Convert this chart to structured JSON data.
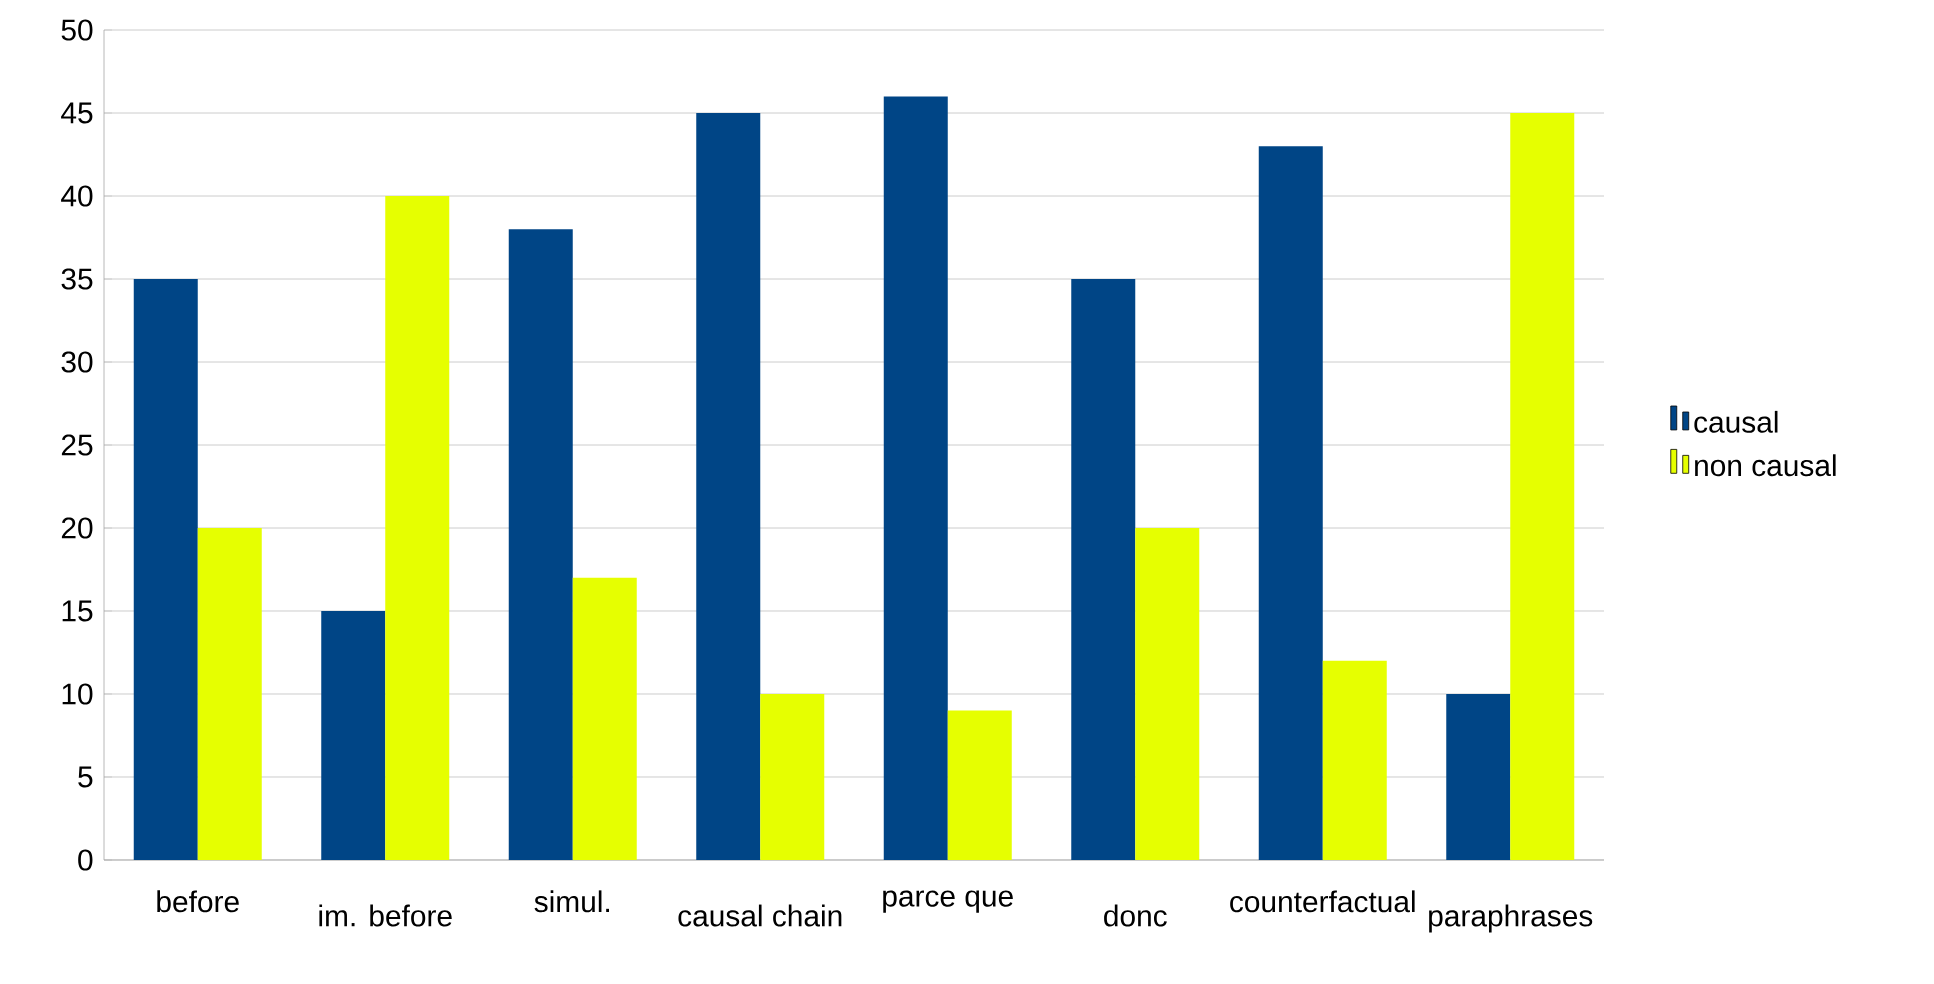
{
  "chart_data": {
    "type": "bar",
    "categories": [
      "before",
      "im. before",
      "simul.",
      "causal chain",
      "parce que",
      "donc",
      "counterfactual",
      "paraphrases"
    ],
    "series": [
      {
        "name": "causal",
        "color": "#004586",
        "values": [
          35,
          15,
          38,
          45,
          46,
          35,
          43,
          10
        ]
      },
      {
        "name": "non causal",
        "color": "#e6ff00",
        "values": [
          20,
          40,
          17,
          10,
          9,
          20,
          12,
          45
        ]
      }
    ],
    "ylim": [
      0,
      50
    ],
    "yticks": [
      0,
      5,
      10,
      15,
      20,
      25,
      30,
      35,
      40,
      45,
      50
    ],
    "grid": "y",
    "legend": "right"
  }
}
